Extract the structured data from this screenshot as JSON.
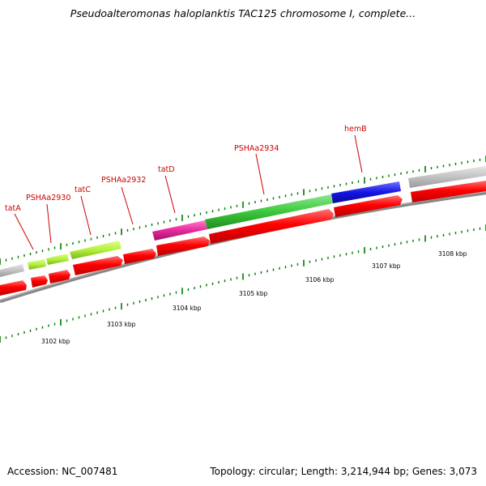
{
  "title": "Pseudoalteromonas haloplanktis TAC125 chromosome I, complete...",
  "footer": {
    "accession": "Accession: NC_007481",
    "summary": "Topology: circular; Length: 3,214,944 bp; Genes: 3,073"
  },
  "colors": {
    "cds": "#ff0000",
    "backbone": "#888888",
    "tick": "#007700",
    "label": "#cc0000",
    "gray_feature": "#c0c0c0",
    "yellow_green": "#b4f03c",
    "magenta": "#e6289b",
    "green": "#3cc83c",
    "blue": "#1414e6"
  },
  "gene_labels": [
    "tatA",
    "PSHAa2930",
    "tatC",
    "PSHAa2932",
    "tatD",
    "PSHAa2934",
    "hemB"
  ],
  "kbp_labels": [
    "3102 kbp",
    "3103 kbp",
    "3104 kbp",
    "3105 kbp",
    "3106 kbp",
    "3107 kbp",
    "3108 kbp"
  ]
}
